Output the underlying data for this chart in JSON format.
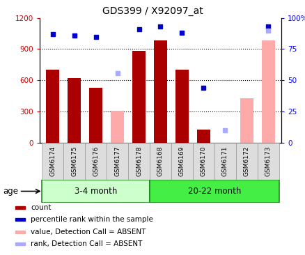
{
  "title": "GDS399 / X92097_at",
  "samples": [
    "GSM6174",
    "GSM6175",
    "GSM6176",
    "GSM6177",
    "GSM6178",
    "GSM6168",
    "GSM6169",
    "GSM6170",
    "GSM6171",
    "GSM6172",
    "GSM6173"
  ],
  "count_values": [
    700,
    620,
    530,
    null,
    880,
    980,
    700,
    130,
    null,
    null,
    null
  ],
  "absent_value_bars": [
    null,
    null,
    null,
    310,
    null,
    null,
    null,
    null,
    null,
    430,
    980
  ],
  "percentile_rank": [
    87,
    86,
    85,
    null,
    91,
    93,
    88,
    44,
    null,
    null,
    93
  ],
  "absent_rank_squares": [
    null,
    null,
    null,
    56,
    null,
    null,
    null,
    null,
    10,
    null,
    90
  ],
  "group1": {
    "label": "3-4 month",
    "indices": [
      0,
      1,
      2,
      3,
      4
    ]
  },
  "group2": {
    "label": "20-22 month",
    "indices": [
      5,
      6,
      7,
      8,
      9,
      10
    ]
  },
  "ylim_left": [
    0,
    1200
  ],
  "ylim_right": [
    0,
    100
  ],
  "yticks_left": [
    0,
    300,
    600,
    900,
    1200
  ],
  "ytick_labels_left": [
    "0",
    "300",
    "600",
    "900",
    "1200"
  ],
  "yticks_right": [
    0,
    25,
    50,
    75,
    100
  ],
  "ytick_labels_right": [
    "0",
    "25",
    "50",
    "75",
    "100%"
  ],
  "bar_color_count": "#aa0000",
  "bar_color_absent_value": "#ffaaaa",
  "square_color_rank": "#0000cc",
  "square_color_absent_rank": "#aaaaff",
  "age_label": "age",
  "group1_color": "#ccffcc",
  "group2_color": "#44ee44",
  "legend": [
    {
      "label": "count",
      "color": "#aa0000"
    },
    {
      "label": "percentile rank within the sample",
      "color": "#0000cc"
    },
    {
      "label": "value, Detection Call = ABSENT",
      "color": "#ffaaaa"
    },
    {
      "label": "rank, Detection Call = ABSENT",
      "color": "#aaaaff"
    }
  ]
}
